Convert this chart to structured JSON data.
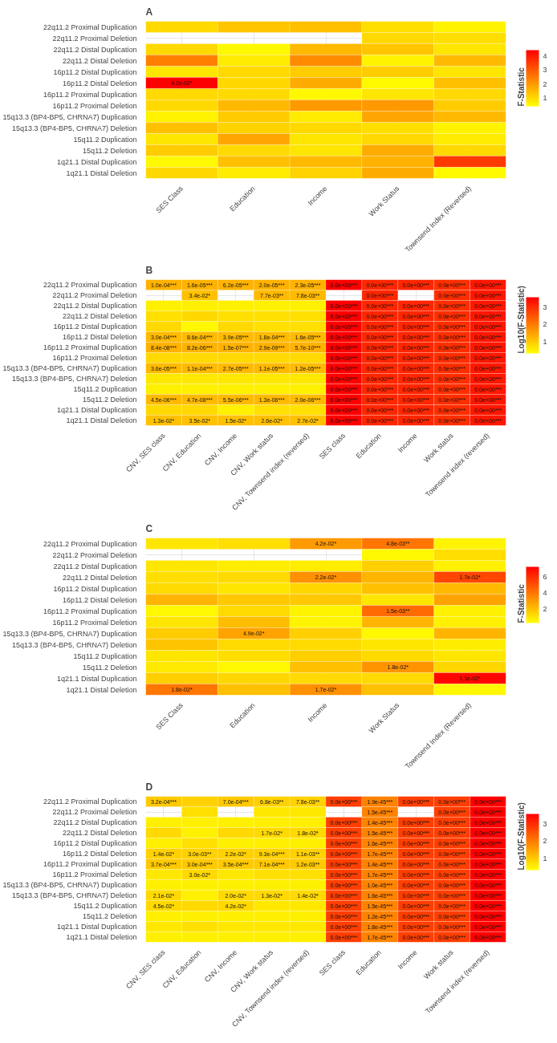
{
  "chart_data": [
    {
      "type": "heatmap",
      "title": "A",
      "clabel": "F-Statistic",
      "clim": [
        0.4,
        4.4
      ],
      "cticks": [
        1,
        2,
        3,
        4
      ],
      "grid": true,
      "categories": [
        "SES Class",
        "Education",
        "Income",
        "Work Status",
        "Townsend Index (Reversed)"
      ],
      "y_categories": [
        "22q11.2 Proximal Duplication",
        "22q11.2 Proximal Deletion",
        "22q11.2 Distal Duplication",
        "22q11.2 Distal Deletion",
        "16p11.2 Distal Duplication",
        "16p11.2 Distal Deletion",
        "16p11.2 Proximal Duplication",
        "16p11.2 Proximal Deletion",
        "15q13.3 (BP4-BP5, CHRNA7) Duplication",
        "15q13.3 (BP4-BP5, CHRNA7) Deletion",
        "15q11.2 Duplication",
        "15q11.2 Deletion",
        "1q21.1 Distal Duplication",
        "1q21.1 Distal Deletion"
      ],
      "cells": [
        [
          1.0,
          1.3,
          1.4,
          0.9,
          0.6
        ],
        [
          null,
          null,
          null,
          1.0,
          0.9
        ],
        [
          1.0,
          0.5,
          1.5,
          1.3,
          0.8
        ],
        [
          2.4,
          0.7,
          2.2,
          0.6,
          1.5
        ],
        [
          0.8,
          1.0,
          1.2,
          1.2,
          0.8
        ],
        [
          4.4,
          1.0,
          1.7,
          0.5,
          1.4
        ],
        [
          1.0,
          1.0,
          0.5,
          0.8,
          1.0
        ],
        [
          1.0,
          1.5,
          2.0,
          2.0,
          1.2
        ],
        [
          0.6,
          1.2,
          0.7,
          1.8,
          1.5
        ],
        [
          1.4,
          1.1,
          1.0,
          0.9,
          0.6
        ],
        [
          0.8,
          1.8,
          0.8,
          1.0,
          0.7
        ],
        [
          1.2,
          1.0,
          0.8,
          1.7,
          1.0
        ],
        [
          0.5,
          1.4,
          1.5,
          1.6,
          3.5
        ],
        [
          1.0,
          0.7,
          1.1,
          1.7,
          0.5
        ]
      ],
      "cell_labels": [
        [
          null,
          null,
          null,
          null,
          null
        ],
        [
          null,
          null,
          null,
          null,
          null
        ],
        [
          null,
          null,
          null,
          null,
          null
        ],
        [
          null,
          null,
          null,
          null,
          null
        ],
        [
          null,
          null,
          null,
          null,
          null
        ],
        [
          "4.2e-02*",
          null,
          null,
          null,
          null
        ],
        [
          null,
          null,
          null,
          null,
          null
        ],
        [
          null,
          null,
          null,
          null,
          null
        ],
        [
          null,
          null,
          null,
          null,
          null
        ],
        [
          null,
          null,
          null,
          null,
          null
        ],
        [
          null,
          null,
          null,
          null,
          null
        ],
        [
          null,
          null,
          null,
          null,
          null
        ],
        [
          null,
          null,
          null,
          null,
          null
        ],
        [
          null,
          null,
          null,
          null,
          null
        ]
      ]
    },
    {
      "type": "heatmap",
      "title": "B",
      "clabel": "Log10(F-Statistic)",
      "clim": [
        0.3,
        3.6
      ],
      "cticks": [
        1,
        2,
        3
      ],
      "grid": true,
      "categories": [
        "CNV, SES class",
        "CNV, Education",
        "CNV, Income",
        "CNV, Work status",
        "CNV, Townsend index (reversed)",
        "SES class",
        "Education",
        "Income",
        "Work status",
        "Townsend index (reversed)"
      ],
      "y_categories": [
        "22q11.2 Proximal Duplication",
        "22q11.2 Proximal Deletion",
        "22q11.2 Distal Duplication",
        "22q11.2 Distal Deletion",
        "16p11.2 Distal Duplication",
        "16p11.2 Distal Deletion",
        "16p11.2 Proximal Duplication",
        "16p11.2 Proximal Deletion",
        "15q13.3 (BP4-BP5, CHRNA7) Duplication",
        "15q13.3 (BP4-BP5, CHRNA7) Deletion",
        "15q11.2 Duplication",
        "15q11.2 Deletion",
        "1q21.1 Distal Duplication",
        "1q21.1 Distal Deletion"
      ],
      "cells": [
        [
          1.3,
          1.3,
          1.3,
          1.3,
          1.3,
          3.6,
          3.1,
          3.1,
          3.0,
          3.3
        ],
        [
          null,
          1.1,
          null,
          1.2,
          1.2,
          null,
          3.1,
          null,
          3.0,
          3.3
        ],
        [
          0.5,
          0.5,
          0.5,
          0.5,
          0.5,
          3.6,
          3.1,
          3.1,
          3.0,
          3.3
        ],
        [
          0.7,
          0.8,
          0.7,
          0.7,
          0.7,
          3.6,
          3.1,
          3.1,
          3.0,
          3.3
        ],
        [
          0.8,
          0.4,
          0.8,
          0.7,
          0.7,
          3.6,
          3.1,
          3.1,
          3.0,
          3.3
        ],
        [
          1.2,
          1.2,
          1.2,
          1.2,
          1.2,
          3.6,
          3.1,
          3.1,
          3.0,
          3.3
        ],
        [
          1.3,
          1.3,
          1.3,
          1.3,
          1.3,
          3.6,
          3.1,
          3.1,
          3.0,
          3.3
        ],
        [
          0.8,
          0.8,
          0.8,
          0.8,
          0.8,
          3.6,
          3.1,
          3.1,
          3.0,
          3.3
        ],
        [
          1.2,
          1.2,
          1.2,
          1.2,
          1.2,
          3.6,
          3.1,
          3.1,
          3.0,
          3.3
        ],
        [
          0.6,
          0.6,
          0.6,
          0.6,
          0.6,
          3.6,
          3.1,
          3.1,
          3.0,
          3.3
        ],
        [
          0.5,
          0.5,
          0.5,
          0.5,
          0.5,
          3.6,
          3.1,
          3.1,
          3.0,
          3.3
        ],
        [
          1.2,
          1.2,
          1.2,
          1.2,
          1.2,
          3.6,
          3.1,
          3.1,
          3.0,
          3.3
        ],
        [
          0.8,
          0.8,
          0.5,
          0.7,
          0.7,
          3.6,
          3.1,
          3.1,
          3.0,
          3.3
        ],
        [
          1.1,
          1.1,
          1.1,
          1.1,
          1.1,
          3.6,
          3.1,
          3.1,
          3.0,
          3.3
        ]
      ],
      "cell_labels": [
        [
          "1.0e-04***",
          "1.6e-05***",
          "6.2e-05***",
          "2.0e-05***",
          "2.3e-05***",
          "0.0e+00***",
          "0.0e+00***",
          "0.0e+00***",
          "0.0e+00***",
          "0.0e+00***"
        ],
        [
          null,
          "3.4e-02*",
          null,
          "7.7e-03**",
          "7.8e-03**",
          null,
          "0.0e+00***",
          null,
          "0.0e+00***",
          "0.0e+00***"
        ],
        [
          null,
          null,
          null,
          null,
          null,
          "0.0e+00***",
          "0.0e+00***",
          "0.0e+00***",
          "0.0e+00***",
          "0.0e+00***"
        ],
        [
          null,
          null,
          null,
          null,
          null,
          "0.0e+00***",
          "0.0e+00***",
          "0.0e+00***",
          "0.0e+00***",
          "0.0e+00***"
        ],
        [
          null,
          null,
          null,
          null,
          null,
          "0.0e+00***",
          "0.0e+00***",
          "0.0e+00***",
          "0.0e+00***",
          "0.0e+00***"
        ],
        [
          "3.0e-04***",
          "8.6e-04***",
          "3.9e-05***",
          "1.8e-04***",
          "1.6e-05***",
          "0.0e+00***",
          "0.0e+00***",
          "0.0e+00***",
          "0.0e+00***",
          "0.0e+00***"
        ],
        [
          "8.4e-08***",
          "8.2e-06***",
          "1.5e-07***",
          "2.9e-09***",
          "5.7e-10***",
          "0.0e+00***",
          "0.0e+00***",
          "0.0e+00***",
          "0.0e+00***",
          "0.0e+00***"
        ],
        [
          null,
          null,
          null,
          null,
          null,
          "0.0e+00***",
          "0.0e+00***",
          "0.0e+00***",
          "0.0e+00***",
          "0.0e+00***"
        ],
        [
          "3.6e-05***",
          "1.1e-04***",
          "2.7e-05***",
          "1.1e-05***",
          "1.2e-05***",
          "0.0e+00***",
          "0.0e+00***",
          "0.0e+00***",
          "0.0e+00***",
          "0.0e+00***"
        ],
        [
          null,
          null,
          null,
          null,
          null,
          "0.0e+00***",
          "0.0e+00***",
          "0.0e+00***",
          "0.0e+00***",
          "0.0e+00***"
        ],
        [
          null,
          null,
          null,
          null,
          null,
          "0.0e+00***",
          "0.0e+00***",
          "0.0e+00***",
          "0.0e+00***",
          "0.0e+00***"
        ],
        [
          "4.5e-06***",
          "4.7e-08***",
          "5.5e-06***",
          "1.3e-06***",
          "2.0e-06***",
          "0.0e+00***",
          "0.0e+00***",
          "0.0e+00***",
          "0.0e+00***",
          "0.0e+00***"
        ],
        [
          null,
          null,
          null,
          null,
          null,
          "0.0e+00***",
          "0.0e+00***",
          "0.0e+00***",
          "0.0e+00***",
          "0.0e+00***"
        ],
        [
          "1.3e-02*",
          "3.5e-02*",
          "1.5e-02*",
          "2.6e-02*",
          "2.7e-02*",
          "0.0e+00***",
          "0.0e+00***",
          "0.0e+00***",
          "0.0e+00***",
          "0.0e+00***"
        ]
      ]
    },
    {
      "type": "heatmap",
      "title": "C",
      "clabel": "F-Statistic",
      "clim": [
        0.3,
        7.2
      ],
      "cticks": [
        2,
        4,
        6
      ],
      "grid": true,
      "categories": [
        "SES Class",
        "Education",
        "Income",
        "Work Status",
        "Townsend Index (Reversed)"
      ],
      "y_categories": [
        "22q11.2 Proximal Duplication",
        "22q11.2 Proximal Deletion",
        "22q11.2 Distal Duplication",
        "22q11.2 Distal Deletion",
        "16p11.2 Distal Duplication",
        "16p11.2 Distal Deletion",
        "16p11.2 Proximal Duplication",
        "16p11.2 Proximal Deletion",
        "15q13.3 (BP4-BP5, CHRNA7) Duplication",
        "15q13.3 (BP4-BP5, CHRNA7) Deletion",
        "15q11.2 Duplication",
        "15q11.2 Deletion",
        "1q21.1 Distal Duplication",
        "1q21.1 Distal Deletion"
      ],
      "cells": [
        [
          1.0,
          1.2,
          3.0,
          4.0,
          0.6
        ],
        [
          null,
          null,
          null,
          0.5,
          1.2
        ],
        [
          1.0,
          0.8,
          0.8,
          1.6,
          0.7
        ],
        [
          1.2,
          1.3,
          3.3,
          2.3,
          5.3
        ],
        [
          1.3,
          1.0,
          1.4,
          2.0,
          2.2
        ],
        [
          2.3,
          1.8,
          1.8,
          1.0,
          2.8
        ],
        [
          0.5,
          1.3,
          0.6,
          4.3,
          0.7
        ],
        [
          1.0,
          2.1,
          0.6,
          2.3,
          0.7
        ],
        [
          1.7,
          2.8,
          1.6,
          0.5,
          2.3
        ],
        [
          1.9,
          1.3,
          1.3,
          1.0,
          0.8
        ],
        [
          1.0,
          1.2,
          1.6,
          1.3,
          1.0
        ],
        [
          0.9,
          0.5,
          2.0,
          3.2,
          1.4
        ],
        [
          1.6,
          1.4,
          1.3,
          1.3,
          7.0
        ],
        [
          4.0,
          2.0,
          3.3,
          2.0,
          0.5
        ]
      ],
      "cell_labels": [
        [
          null,
          null,
          "4.2e-02*",
          "4.8e-03**",
          null
        ],
        [
          null,
          null,
          null,
          null,
          null
        ],
        [
          null,
          null,
          null,
          null,
          null
        ],
        [
          null,
          null,
          "2.2e-02*",
          null,
          "1.7e-02*"
        ],
        [
          null,
          null,
          null,
          null,
          null
        ],
        [
          null,
          null,
          null,
          null,
          null
        ],
        [
          null,
          null,
          null,
          "1.5e-03**",
          null
        ],
        [
          null,
          null,
          null,
          null,
          null
        ],
        [
          null,
          "4.9e-02*",
          null,
          null,
          null
        ],
        [
          null,
          null,
          null,
          null,
          null
        ],
        [
          null,
          null,
          null,
          null,
          null
        ],
        [
          null,
          null,
          null,
          "1.8e-02*",
          null
        ],
        [
          null,
          null,
          null,
          null,
          "1.1e-02*"
        ],
        [
          "1.8e-02*",
          null,
          "1.7e-02*",
          null,
          null
        ]
      ]
    },
    {
      "type": "heatmap",
      "title": "D",
      "clabel": "Log10(F-Statistic)",
      "clim": [
        0.3,
        3.6
      ],
      "cticks": [
        1,
        2,
        3
      ],
      "grid": true,
      "categories": [
        "CNV, SES class",
        "CNV, Education",
        "CNV, Income",
        "CNV, Work status",
        "CNV, Townsend index (reversed)",
        "SES class",
        "Education",
        "Income",
        "Work status",
        "Townsend index (reversed)"
      ],
      "y_categories": [
        "22q11.2 Proximal Duplication",
        "22q11.2 Proximal Deletion",
        "22q11.2 Distal Duplication",
        "22q11.2 Distal Deletion",
        "16p11.2 Distal Duplication",
        "16p11.2 Distal Deletion",
        "16p11.2 Proximal Duplication",
        "16p11.2 Proximal Deletion",
        "15q13.3 (BP4-BP5, CHRNA7) Duplication",
        "15q13.3 (BP4-BP5, CHRNA7) Deletion",
        "15q11.2 Duplication",
        "15q11.2 Deletion",
        "1q21.1 Distal Duplication",
        "1q21.1 Distal Deletion"
      ],
      "cells": [
        [
          1.0,
          0.9,
          1.0,
          0.9,
          0.9,
          2.8,
          1.9,
          2.8,
          2.8,
          3.6
        ],
        [
          null,
          0.7,
          null,
          0.6,
          0.6,
          null,
          1.9,
          null,
          2.8,
          3.6
        ],
        [
          0.5,
          0.5,
          0.5,
          0.5,
          0.5,
          2.8,
          1.9,
          2.8,
          2.8,
          3.6
        ],
        [
          0.8,
          0.5,
          0.8,
          0.8,
          0.8,
          2.8,
          1.9,
          2.8,
          2.8,
          3.6
        ],
        [
          0.5,
          0.7,
          0.5,
          0.5,
          0.5,
          2.8,
          1.9,
          2.8,
          2.8,
          3.6
        ],
        [
          0.9,
          0.9,
          0.9,
          0.9,
          0.9,
          2.8,
          1.9,
          2.8,
          2.8,
          3.6
        ],
        [
          1.0,
          1.0,
          1.0,
          1.0,
          1.0,
          2.8,
          1.9,
          2.8,
          2.8,
          3.6
        ],
        [
          0.6,
          0.8,
          0.6,
          0.7,
          0.7,
          2.8,
          1.9,
          2.8,
          2.8,
          3.6
        ],
        [
          0.5,
          0.5,
          0.5,
          0.5,
          0.5,
          2.8,
          1.9,
          2.8,
          2.8,
          3.6
        ],
        [
          0.8,
          0.5,
          0.8,
          0.8,
          0.8,
          2.8,
          1.9,
          2.8,
          2.8,
          3.6
        ],
        [
          0.8,
          0.8,
          0.8,
          0.6,
          0.6,
          2.8,
          1.9,
          2.8,
          2.8,
          3.6
        ],
        [
          0.5,
          0.5,
          0.5,
          0.5,
          0.5,
          2.8,
          1.9,
          2.8,
          2.8,
          3.6
        ],
        [
          0.6,
          0.7,
          0.6,
          0.6,
          0.6,
          2.8,
          1.9,
          2.8,
          2.8,
          3.6
        ],
        [
          0.5,
          0.5,
          0.5,
          0.5,
          0.5,
          2.8,
          1.9,
          2.8,
          2.8,
          3.6
        ]
      ],
      "cell_labels": [
        [
          "3.2e-04***",
          null,
          "7.0e-04***",
          "6.8e-03**",
          "7.8e-03**",
          "0.0e+00***",
          "1.9e-45***",
          "0.0e+00***",
          "0.0e+00***",
          "0.0e+00***"
        ],
        [
          null,
          null,
          null,
          null,
          null,
          null,
          "1.5e-45***",
          null,
          "0.0e+00***",
          "0.0e+00***"
        ],
        [
          null,
          null,
          null,
          null,
          null,
          "0.0e+00***",
          "1.4e-45***",
          "0.0e+00***",
          "0.0e+00***",
          "0.0e+00***"
        ],
        [
          null,
          null,
          null,
          "1.7e-02*",
          "1.8e-02*",
          "0.0e+00***",
          "1.5e-45***",
          "0.0e+00***",
          "0.0e+00***",
          "0.0e+00***"
        ],
        [
          null,
          null,
          null,
          null,
          null,
          "0.0e+00***",
          "1.6e-45***",
          "0.0e+00***",
          "0.0e+00***",
          "0.0e+00***"
        ],
        [
          "1.4e-02*",
          "3.0e-03**",
          "2.2e-02*",
          "9.3e-04***",
          "1.1e-03**",
          "0.0e+00***",
          "1.7e-45***",
          "0.0e+00***",
          "0.0e+00***",
          "0.0e+00***"
        ],
        [
          "3.7e-04***",
          "3.0e-04***",
          "3.5e-04***",
          "7.1e-04***",
          "1.2e-03**",
          "0.0e+00***",
          "1.4e-45***",
          "0.0e+00***",
          "0.0e+00***",
          "0.0e+00***"
        ],
        [
          null,
          "3.0e-02*",
          null,
          null,
          null,
          "0.0e+00***",
          "1.7e-45***",
          "0.0e+00***",
          "0.0e+00***",
          "0.0e+00***"
        ],
        [
          null,
          null,
          null,
          null,
          null,
          "0.0e+00***",
          "1.0e-45***",
          "0.0e+00***",
          "0.0e+00***",
          "0.0e+00***"
        ],
        [
          "2.1e-02*",
          null,
          "2.0e-02*",
          "1.3e-02*",
          "1.4e-02*",
          "0.0e+00***",
          "1.6e-45***",
          "0.0e+00***",
          "0.0e+00***",
          "0.0e+00***"
        ],
        [
          "4.5e-02*",
          null,
          "4.2e-02*",
          null,
          null,
          "0.0e+00***",
          "1.5e-45***",
          "0.0e+00***",
          "0.0e+00***",
          "0.0e+00***"
        ],
        [
          null,
          null,
          null,
          null,
          null,
          "0.0e+00***",
          "1.2e-45***",
          "0.0e+00***",
          "0.0e+00***",
          "0.0e+00***"
        ],
        [
          null,
          null,
          null,
          null,
          null,
          "0.0e+00***",
          "1.8e-45***",
          "0.0e+00***",
          "0.0e+00***",
          "0.0e+00***"
        ],
        [
          null,
          null,
          null,
          null,
          null,
          "0.0e+00***",
          "1.7e-45***",
          "0.0e+00***",
          "0.0e+00***",
          "0.0e+00***"
        ]
      ]
    }
  ]
}
